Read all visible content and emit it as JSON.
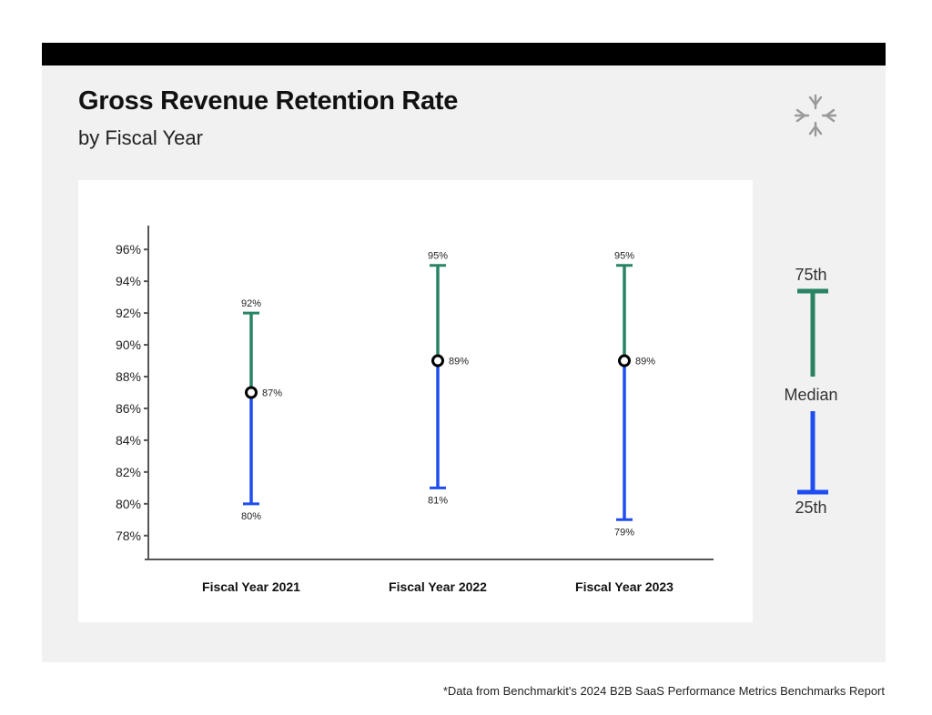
{
  "title": "Gross Revenue Retention Rate",
  "subtitle": "by Fiscal Year",
  "logo_icon": "asterisk-star-logo-icon",
  "footnote": "*Data from Benchmarkit's 2024 B2B SaaS Performance Metrics Benchmarks Report",
  "colors": {
    "upper": "#2a8464",
    "lower": "#1f4ef0",
    "axis": "#555555",
    "card": "#f0f1f0",
    "topbar": "#000000"
  },
  "legend": {
    "top_label": "75th",
    "middle_label": "Median",
    "bottom_label": "25th"
  },
  "chart_data": {
    "type": "range",
    "categories": [
      "Fiscal Year 2021",
      "Fiscal Year 2022",
      "Fiscal Year 2023"
    ],
    "series": [
      {
        "name": "75th",
        "values": [
          92,
          95,
          95
        ]
      },
      {
        "name": "Median",
        "values": [
          87,
          89,
          89
        ]
      },
      {
        "name": "25th",
        "values": [
          80,
          81,
          79
        ]
      }
    ],
    "point_labels": {
      "p75": [
        "92%",
        "95%",
        "95%"
      ],
      "median": [
        "87%",
        "89%",
        "89%"
      ],
      "p25": [
        "80%",
        "81%",
        "79%"
      ]
    },
    "yticks": [
      78,
      80,
      82,
      84,
      86,
      88,
      90,
      92,
      94,
      96
    ],
    "ytick_labels": [
      "78%",
      "80%",
      "82%",
      "84%",
      "86%",
      "88%",
      "90%",
      "92%",
      "94%",
      "96%"
    ],
    "ylim": [
      76.5,
      97.5
    ],
    "grid": false
  }
}
